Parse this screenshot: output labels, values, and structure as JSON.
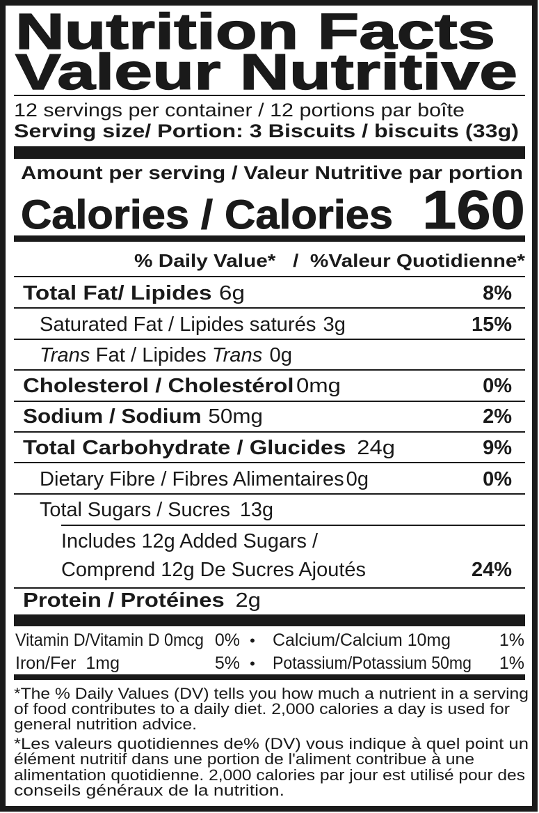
{
  "header": {
    "title": "Nutrition Facts",
    "title_fr": "Valeur Nutritive",
    "servings": "12 servings per container / 12 portions par boîte",
    "serving_size": "Serving size/ Portion: 3 Biscuits / biscuits (33g)"
  },
  "calories": {
    "amount_per_serving": "Amount per serving / Valeur Nutritive par portion",
    "label": "Calories / Calories",
    "value": 160
  },
  "daily_value_header": "% Daily Value*   /  %Valeur Quotidienne*",
  "nutrients": [
    {
      "name": "Total Fat/ Lipides",
      "amount": "6g",
      "dv": "8%"
    },
    {
      "name": "Saturated Fat / Lipides saturés",
      "amount": "3g",
      "dv": "15%"
    },
    {
      "name_parts": [
        "Trans",
        " Fat / Lipides ",
        "Trans"
      ],
      "amount": "0g"
    },
    {
      "name": "Cholesterol / Cholestérol",
      "amount": "0mg",
      "dv": "0%"
    },
    {
      "name": "Sodium / Sodium",
      "amount": "50mg",
      "dv": "2%"
    },
    {
      "name": "Total Carbohydrate / Glucides",
      "amount": "24g",
      "dv": "9%"
    },
    {
      "name": "Dietary Fibre / Fibres Alimentaires",
      "amount": "0g",
      "dv": "0%"
    },
    {
      "name": "Total Sugars / Sucres",
      "amount": "13g"
    },
    {
      "lines": [
        "Includes 12g Added Sugars /",
        "Comprend 12g De Sucres Ajoutés"
      ],
      "dv": "24%"
    },
    {
      "name": "Protein / Protéines",
      "amount": "2g"
    }
  ],
  "vitamins": [
    {
      "name": "Vitamin D/Vitamin D 0mcg",
      "dv": "0%"
    },
    {
      "name": "Calcium/Calcium 10mg",
      "dv": "1%"
    },
    {
      "name": "Iron/Fer  1mg",
      "dv": "5%"
    },
    {
      "name": "Potassium/Potassium 50mg",
      "dv": "1%"
    }
  ],
  "separator": "•",
  "footnotes": {
    "en": [
      "*The % Daily Values (DV) tells you how much a nutrient in a serving",
      "of food contributes to a daily diet. 2,000 calories a day is used for",
      "general nutrition advice."
    ],
    "fr": [
      "*Les valeurs quotidiennes de% (DV) vous indique à quel point un",
      "élément nutritif dans une portion de l'aliment contribue à une",
      "alimentation quotidienne. 2,000 calories par jour est utilisé pour des",
      "conseils généraux de la nutrition."
    ]
  }
}
